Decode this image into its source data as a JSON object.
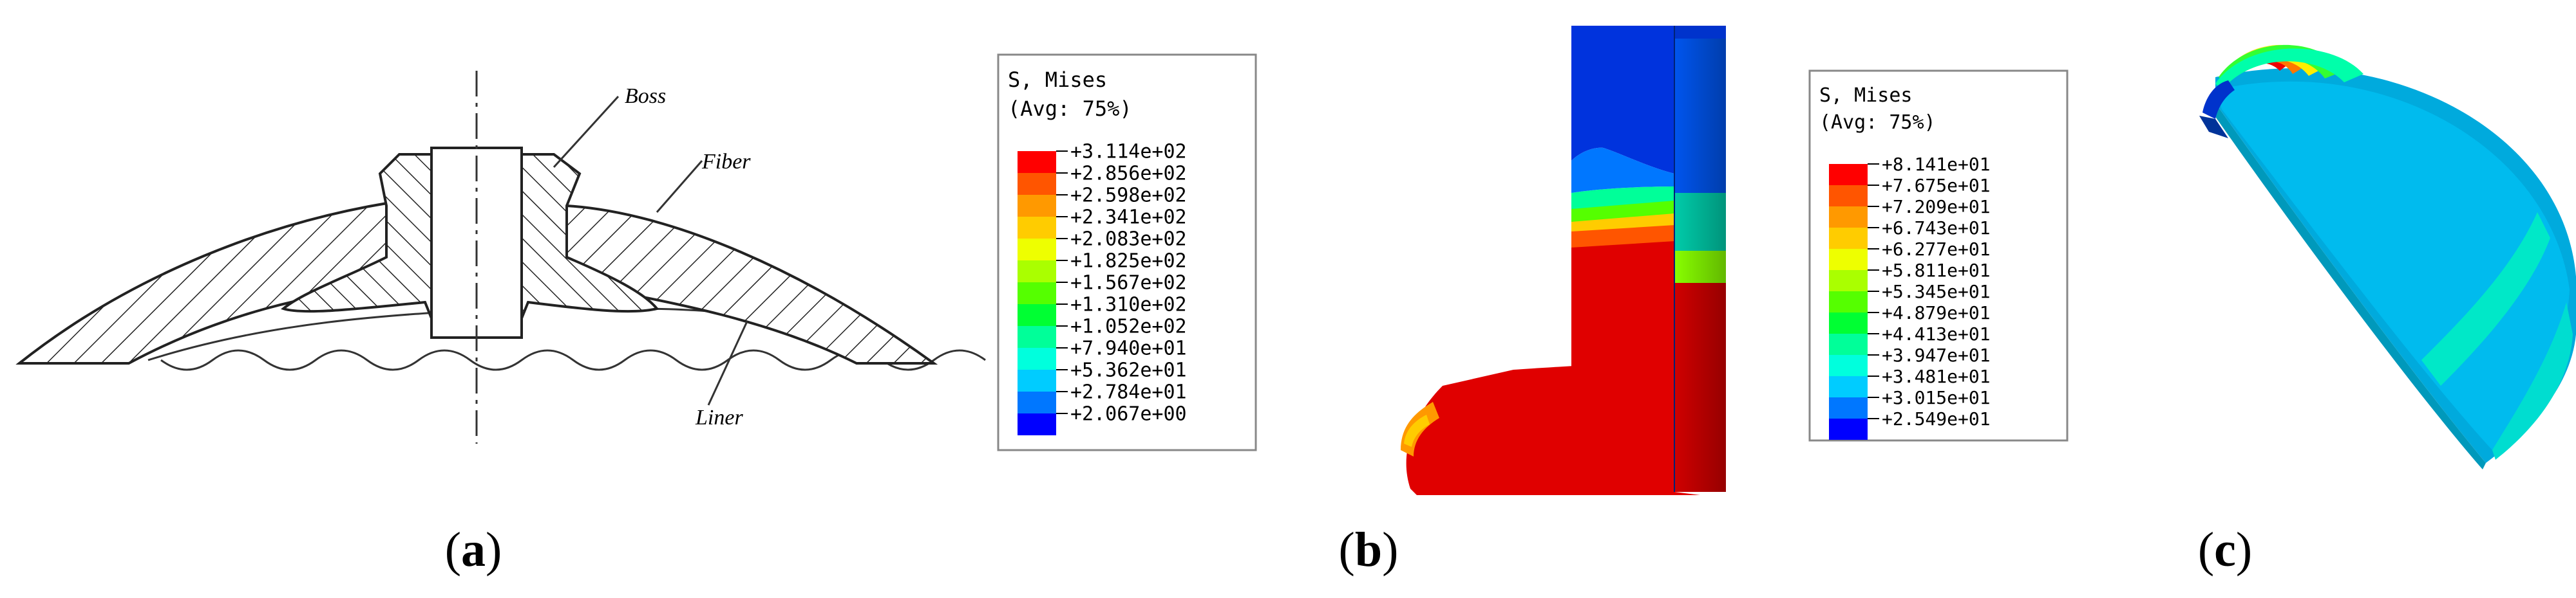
{
  "panel_a": {
    "labels": {
      "boss": "Boss",
      "fiber": "Fiber",
      "liner": "Liner"
    },
    "caption": {
      "open": "(",
      "letter": "a",
      "close": ")"
    }
  },
  "panel_b": {
    "legend": {
      "title": "S, Mises",
      "subtitle": "(Avg: 75%)",
      "entries": [
        {
          "value": "+3.114e+02",
          "color": "#ff0000"
        },
        {
          "value": "+2.856e+02",
          "color": "#ff5500"
        },
        {
          "value": "+2.598e+02",
          "color": "#ff9900"
        },
        {
          "value": "+2.341e+02",
          "color": "#ffcc00"
        },
        {
          "value": "+2.083e+02",
          "color": "#eeff00"
        },
        {
          "value": "+1.825e+02",
          "color": "#aaff00"
        },
        {
          "value": "+1.567e+02",
          "color": "#55ff00"
        },
        {
          "value": "+1.310e+02",
          "color": "#00ff33"
        },
        {
          "value": "+1.052e+02",
          "color": "#00ff99"
        },
        {
          "value": "+7.940e+01",
          "color": "#00ffdd"
        },
        {
          "value": "+5.362e+01",
          "color": "#00ccff"
        },
        {
          "value": "+2.784e+01",
          "color": "#0077ff"
        },
        {
          "value": "+2.067e+00",
          "color": "#0000ff"
        }
      ]
    },
    "caption": {
      "open": "(",
      "letter": "b",
      "close": ")"
    }
  },
  "panel_c": {
    "legend": {
      "title": "S, Mises",
      "subtitle": "(Avg: 75%)",
      "entries": [
        {
          "value": "+8.141e+01",
          "color": "#ff0000"
        },
        {
          "value": "+7.675e+01",
          "color": "#ff5500"
        },
        {
          "value": "+7.209e+01",
          "color": "#ff9900"
        },
        {
          "value": "+6.743e+01",
          "color": "#ffcc00"
        },
        {
          "value": "+6.277e+01",
          "color": "#eeff00"
        },
        {
          "value": "+5.811e+01",
          "color": "#aaff00"
        },
        {
          "value": "+5.345e+01",
          "color": "#55ff00"
        },
        {
          "value": "+4.879e+01",
          "color": "#00ff33"
        },
        {
          "value": "+4.413e+01",
          "color": "#00ff99"
        },
        {
          "value": "+3.947e+01",
          "color": "#00ffdd"
        },
        {
          "value": "+3.481e+01",
          "color": "#00ccff"
        },
        {
          "value": "+3.015e+01",
          "color": "#0077ff"
        },
        {
          "value": "+2.549e+01",
          "color": "#0000ff"
        }
      ]
    },
    "caption": {
      "open": "(",
      "letter": "c",
      "close": ")"
    }
  }
}
